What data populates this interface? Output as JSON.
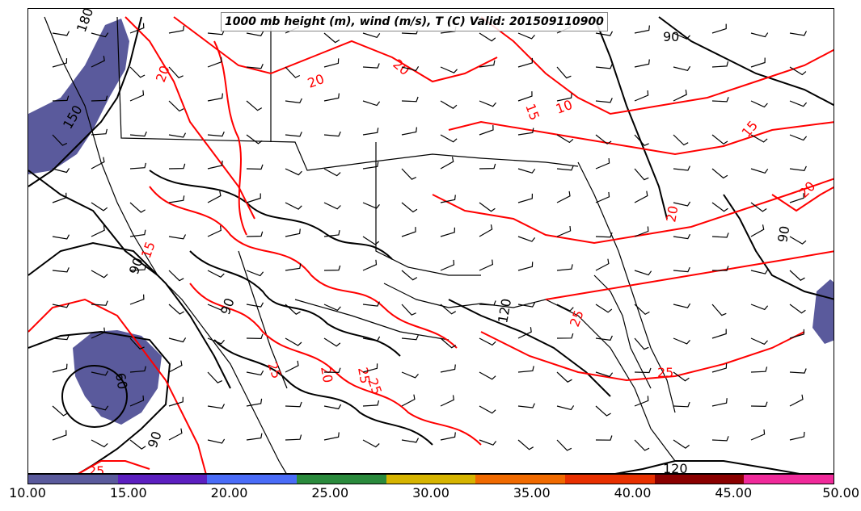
{
  "title": "1000 mb height (m), wind (m/s), T (C) Valid: 201509110900",
  "colorbar": {
    "ticks": [
      "10.00",
      "15.00",
      "20.00",
      "25.00",
      "30.00",
      "35.00",
      "40.00",
      "45.00",
      "50.00"
    ],
    "colors": [
      "#5a5a9c",
      "#5c1fc0",
      "#4a6cf8",
      "#2a8a3c",
      "#d6b400",
      "#f06a00",
      "#e83000",
      "#8a0000",
      "#f02a9a"
    ]
  },
  "colors": {
    "height_contour": "#000000",
    "temperature_contour": "#ff0000",
    "shade_10_15": "#5a5a9c"
  },
  "contour_labels": {
    "height": [
      "180",
      "150",
      "90",
      "60",
      "90",
      "120",
      "90",
      "90",
      "120",
      "90"
    ],
    "temperature": [
      "15",
      "20",
      "20",
      "10",
      "15",
      "20",
      "25",
      "20",
      "15",
      "25",
      "20",
      "25",
      "25",
      "20",
      "25",
      "25"
    ]
  }
}
